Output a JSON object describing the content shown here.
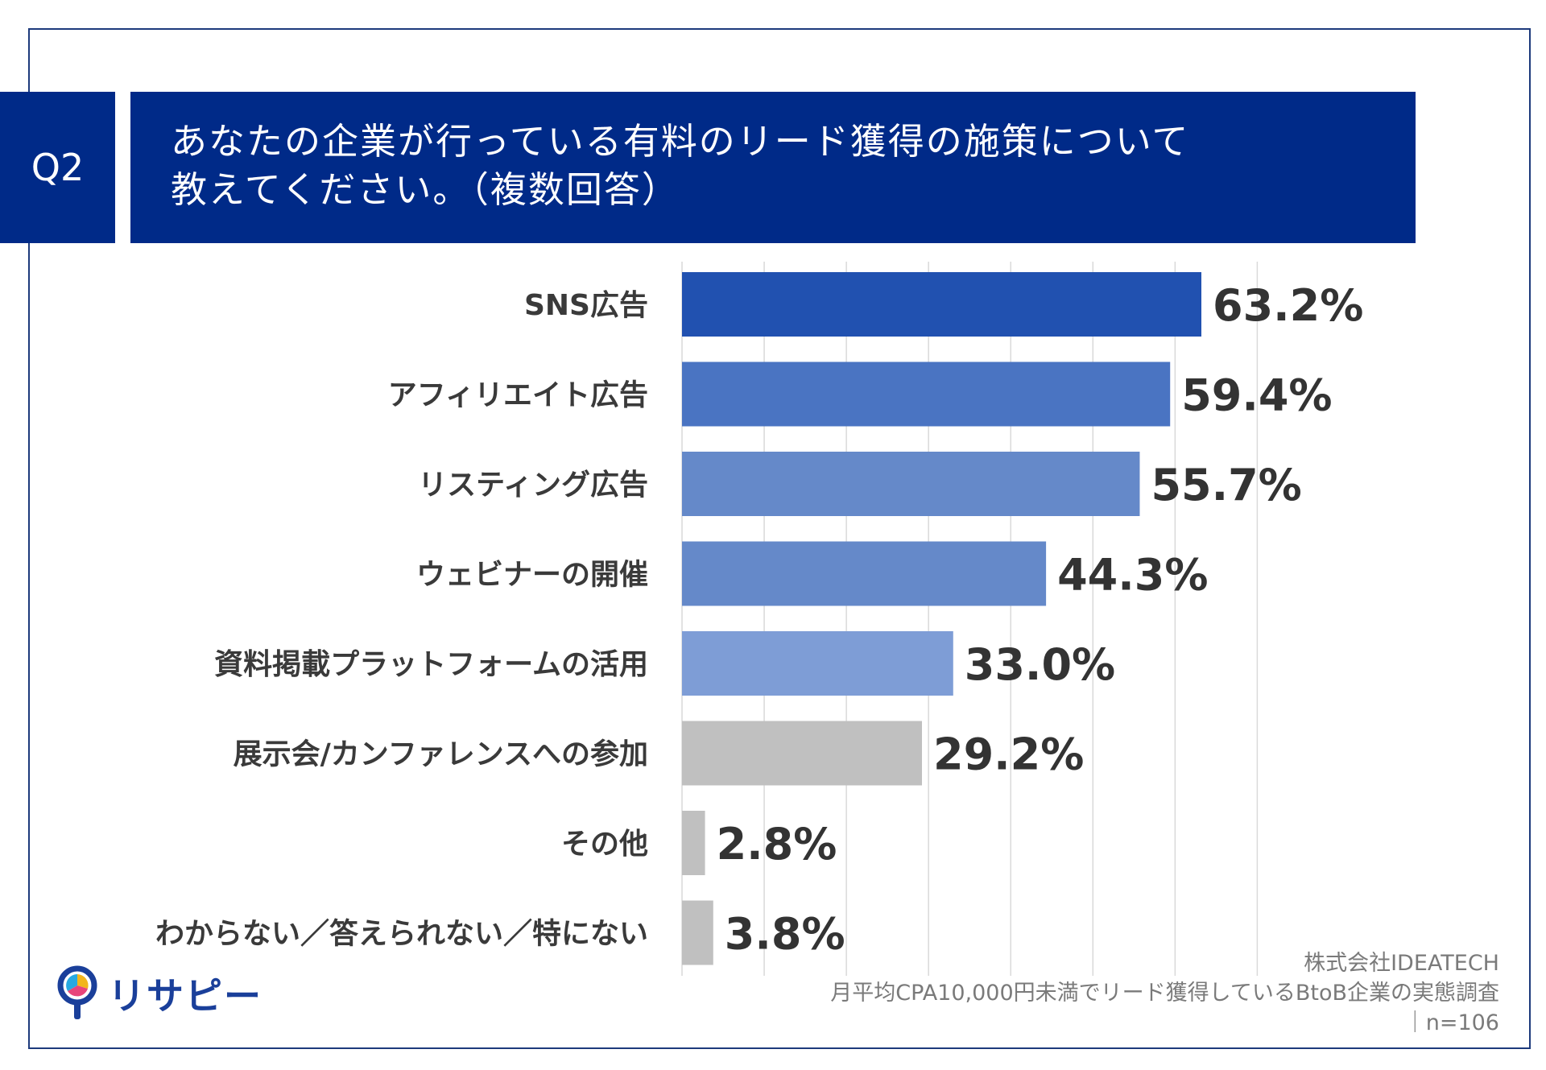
{
  "header": {
    "q_label": "Q2",
    "title_line1": "あなたの企業が行っている有料のリード獲得の施策について",
    "title_line2": "教えてください。（複数回答）"
  },
  "chart_data": {
    "type": "bar",
    "orientation": "horizontal",
    "title": "あなたの企業が行っている有料のリード獲得の施策について教えてください。（複数回答）",
    "categories": [
      "SNS広告",
      "アフィリエイト広告",
      "リスティング広告",
      "ウェビナーの開催",
      "資料掲載プラットフォームの活用",
      "展示会/カンファレンスへの参加",
      "その他",
      "わからない／答えられない／特にない"
    ],
    "values": [
      63.2,
      59.4,
      55.7,
      44.3,
      33.0,
      29.2,
      2.8,
      3.8
    ],
    "value_labels": [
      "63.2%",
      "59.4%",
      "55.7%",
      "44.3%",
      "33.0%",
      "29.2%",
      "2.8%",
      "3.8%"
    ],
    "bar_colors": [
      "#2151b0",
      "#4a74c2",
      "#6589c9",
      "#6589c9",
      "#7e9dd6",
      "#c0c0c0",
      "#c0c0c0",
      "#c0c0c0"
    ],
    "xlim": [
      0,
      70
    ],
    "grid": true,
    "unit": "%"
  },
  "footer": {
    "company": "株式会社IDEATECH",
    "survey": "月平均CPA10,000円未満でリード獲得しているBtoB企業の実態調査",
    "sample": "｜n=106"
  },
  "logo": {
    "text": "リサピー"
  }
}
